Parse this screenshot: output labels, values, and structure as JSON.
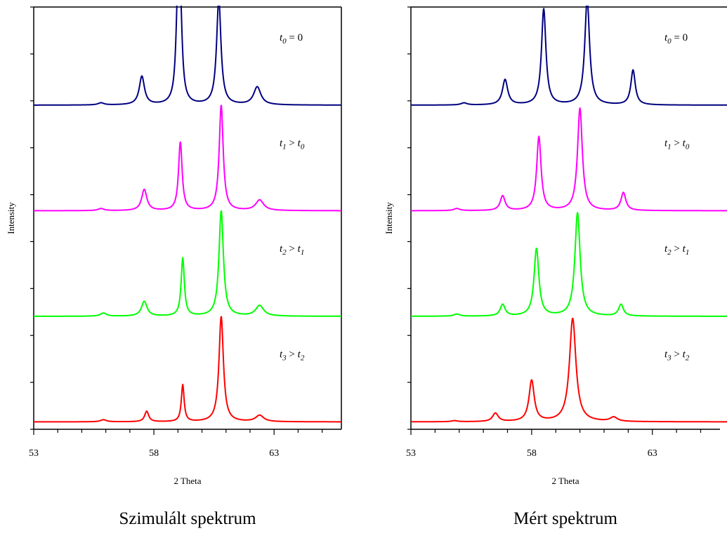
{
  "chart_data": [
    {
      "type": "line",
      "caption": "Szimulált  spektrum",
      "xlabel": "2 Theta",
      "ylabel": "Intensity",
      "xlim": [
        53,
        65.8
      ],
      "xticks": [
        53,
        58,
        63
      ],
      "ylim": [
        0,
        4
      ],
      "series": [
        {
          "label_parts": {
            "a": "t",
            "as": "0",
            "op": "=",
            "b": "0",
            "bs": ""
          },
          "color": "#000080",
          "offset": 3.05,
          "baseline": 0.02,
          "peaks": [
            [
              57.5,
              0.27,
              0.13
            ],
            [
              59.0,
              0.92,
              0.09
            ],
            [
              59.1,
              0.75,
              0.09
            ],
            [
              60.7,
              1.0,
              0.11
            ],
            [
              62.3,
              0.17,
              0.18
            ],
            [
              55.8,
              0.02,
              0.15
            ]
          ]
        },
        {
          "label_parts": {
            "a": "t",
            "as": "1",
            "op": ">",
            "b": "t",
            "bs": "0"
          },
          "color": "#ff00ff",
          "offset": 2.05,
          "baseline": 0.02,
          "peaks": [
            [
              57.6,
              0.2,
              0.13
            ],
            [
              59.1,
              0.65,
              0.09
            ],
            [
              60.8,
              1.0,
              0.1
            ],
            [
              62.4,
              0.1,
              0.2
            ],
            [
              55.8,
              0.02,
              0.15
            ]
          ]
        },
        {
          "label_parts": {
            "a": "t",
            "as": "2",
            "op": ">",
            "b": "t",
            "bs": "1"
          },
          "color": "#00ff00",
          "offset": 1.05,
          "baseline": 0.02,
          "peaks": [
            [
              57.6,
              0.14,
              0.14
            ],
            [
              59.2,
              0.55,
              0.08
            ],
            [
              60.8,
              1.0,
              0.11
            ],
            [
              62.4,
              0.1,
              0.2
            ],
            [
              55.9,
              0.03,
              0.15
            ]
          ]
        },
        {
          "label_parts": {
            "a": "t",
            "as": "3",
            "op": ">",
            "b": "t",
            "bs": "2"
          },
          "color": "#ff0000",
          "offset": 0.05,
          "baseline": 0.02,
          "peaks": [
            [
              57.7,
              0.1,
              0.1
            ],
            [
              59.2,
              0.35,
              0.07
            ],
            [
              60.8,
              1.0,
              0.11
            ],
            [
              62.4,
              0.06,
              0.2
            ],
            [
              55.9,
              0.02,
              0.15
            ]
          ]
        }
      ]
    },
    {
      "type": "line",
      "caption": "Mért spektrum",
      "xlabel": "2 Theta",
      "ylabel": "Intensity",
      "xlim": [
        53,
        65.8
      ],
      "xticks": [
        53,
        58,
        63
      ],
      "ylim": [
        0,
        4
      ],
      "series": [
        {
          "label_parts": {
            "a": "t",
            "as": "0",
            "op": "=",
            "b": "0",
            "bs": ""
          },
          "color": "#000080",
          "offset": 3.05,
          "baseline": 0.02,
          "peaks": [
            [
              56.9,
              0.24,
              0.13
            ],
            [
              58.5,
              0.91,
              0.11
            ],
            [
              60.3,
              1.0,
              0.12
            ],
            [
              62.2,
              0.33,
              0.11
            ],
            [
              55.2,
              0.02,
              0.15
            ]
          ]
        },
        {
          "label_parts": {
            "a": "t",
            "as": "1",
            "op": ">",
            "b": "t",
            "bs": "0"
          },
          "color": "#ff00ff",
          "offset": 2.05,
          "baseline": 0.02,
          "peaks": [
            [
              56.8,
              0.14,
              0.12
            ],
            [
              58.3,
              0.7,
              0.11
            ],
            [
              60.0,
              0.97,
              0.12
            ],
            [
              61.8,
              0.17,
              0.12
            ],
            [
              54.9,
              0.02,
              0.15
            ]
          ]
        },
        {
          "label_parts": {
            "a": "t",
            "as": "2",
            "op": ">",
            "b": "t",
            "bs": "1"
          },
          "color": "#00ff00",
          "offset": 1.05,
          "baseline": 0.02,
          "peaks": [
            [
              56.8,
              0.11,
              0.12
            ],
            [
              58.2,
              0.64,
              0.12
            ],
            [
              59.9,
              0.98,
              0.13
            ],
            [
              61.7,
              0.11,
              0.12
            ],
            [
              54.9,
              0.02,
              0.15
            ]
          ]
        },
        {
          "label_parts": {
            "a": "t",
            "as": "3",
            "op": ">",
            "b": "t",
            "bs": "2"
          },
          "color": "#ff0000",
          "offset": 0.05,
          "baseline": 0.02,
          "peaks": [
            [
              56.5,
              0.08,
              0.14
            ],
            [
              58.0,
              0.39,
              0.13
            ],
            [
              59.7,
              0.98,
              0.16
            ],
            [
              61.4,
              0.04,
              0.18
            ],
            [
              54.8,
              0.01,
              0.15
            ]
          ]
        }
      ]
    }
  ]
}
